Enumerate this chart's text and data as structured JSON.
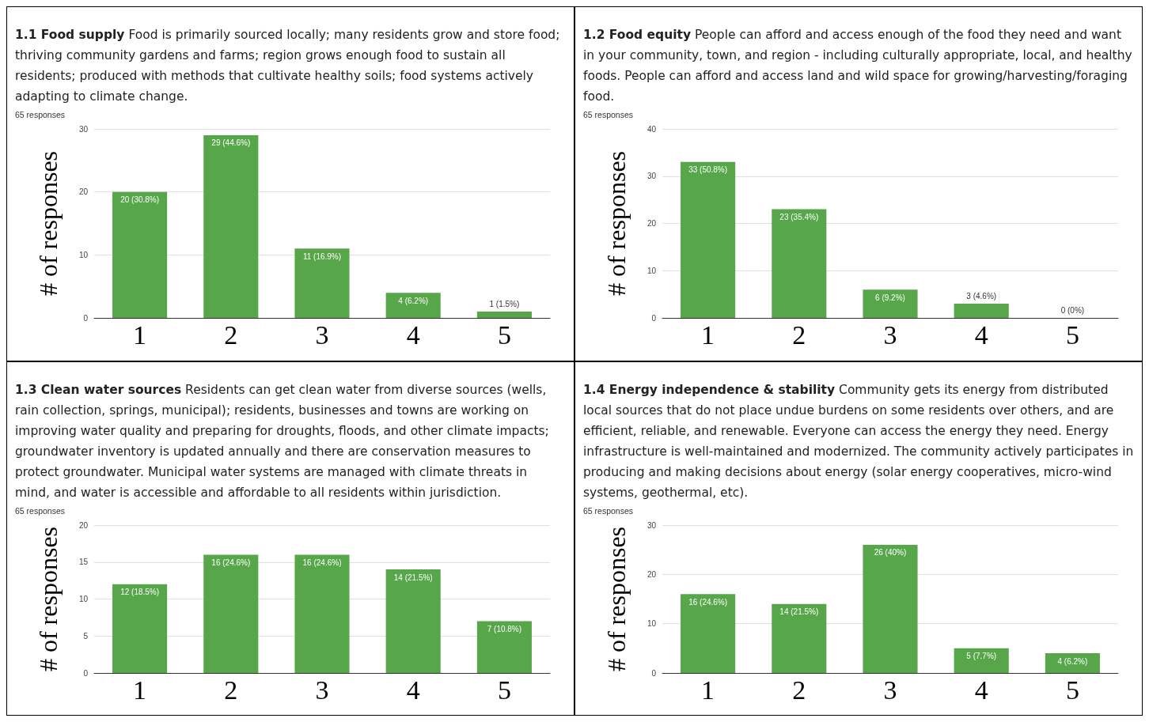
{
  "chart_data": [
    {
      "type": "bar",
      "title": "1.1 Food supply",
      "subtitle": "Food is primarily sourced locally; many residents grow and store food; thriving community gardens and farms; region grows enough food to sustain all residents; produced with methods that cultivate healthy soils; food systems actively adapting to climate change.",
      "annotations": [
        "65 responses"
      ],
      "ylabel": "# of responses",
      "categories": [
        "1",
        "2",
        "3",
        "4",
        "5"
      ],
      "values": [
        20,
        29,
        11,
        4,
        1
      ],
      "value_labels": [
        "20 (30.8%)",
        "29 (44.6%)",
        "11 (16.9%)",
        "4 (6.2%)",
        "1 (1.5%)"
      ],
      "color": "#57a64a",
      "ylim": [
        0,
        30
      ],
      "yticks": [
        0,
        10,
        20,
        30
      ],
      "grid": "y"
    },
    {
      "type": "bar",
      "title": "1.2 Food equity",
      "subtitle": "People can afford and access enough of the food they need and want in your community, town, and region - including culturally appropriate, local, and healthy foods. People can afford and access land and wild space for growing/harvesting/foraging food.",
      "annotations": [
        "65 responses"
      ],
      "ylabel": "# of responses",
      "categories": [
        "1",
        "2",
        "3",
        "4",
        "5"
      ],
      "values": [
        33,
        23,
        6,
        3,
        0
      ],
      "value_labels": [
        "33 (50.8%)",
        "23 (35.4%)",
        "6 (9.2%)",
        "3 (4.6%)",
        "0 (0%)"
      ],
      "color": "#57a64a",
      "ylim": [
        0,
        40
      ],
      "yticks": [
        0,
        10,
        20,
        30,
        40
      ],
      "grid": "y"
    },
    {
      "type": "bar",
      "title": "1.3 Clean water sources",
      "subtitle": "Residents can get clean water from diverse sources (wells, rain collection, springs, municipal); residents, businesses and towns are working on improving water quality and preparing for droughts, floods, and other climate impacts; groundwater inventory is updated annually and there are conservation measures to protect groundwater. Municipal water systems are managed with climate threats in mind, and water is accessible and affordable to all residents within jurisdiction.",
      "annotations": [
        "65 responses"
      ],
      "ylabel": "# of responses",
      "categories": [
        "1",
        "2",
        "3",
        "4",
        "5"
      ],
      "values": [
        12,
        16,
        16,
        14,
        7
      ],
      "value_labels": [
        "12 (18.5%)",
        "16 (24.6%)",
        "16 (24.6%)",
        "14 (21.5%)",
        "7 (10.8%)"
      ],
      "color": "#57a64a",
      "ylim": [
        0,
        20
      ],
      "yticks": [
        0,
        5,
        10,
        15,
        20
      ],
      "grid": "y"
    },
    {
      "type": "bar",
      "title": "1.4 Energy independence & stability",
      "subtitle": "Community gets its energy from distributed local sources that do not place undue burdens on some residents over others, and are efficient, reliable, and renewable. Everyone can access the energy they need. Energy infrastructure is well-maintained and modernized. The community actively participates in producing and making decisions about energy (solar energy cooperatives, micro-wind systems, geothermal, etc).",
      "annotations": [
        "65 responses"
      ],
      "ylabel": "# of responses",
      "categories": [
        "1",
        "2",
        "3",
        "4",
        "5"
      ],
      "values": [
        16,
        14,
        26,
        5,
        4
      ],
      "value_labels": [
        "16 (24.6%)",
        "14 (21.5%)",
        "26 (40%)",
        "5 (7.7%)",
        "4 (6.2%)"
      ],
      "color": "#57a64a",
      "ylim": [
        0,
        30
      ],
      "yticks": [
        0,
        10,
        20,
        30
      ],
      "grid": "y"
    }
  ]
}
